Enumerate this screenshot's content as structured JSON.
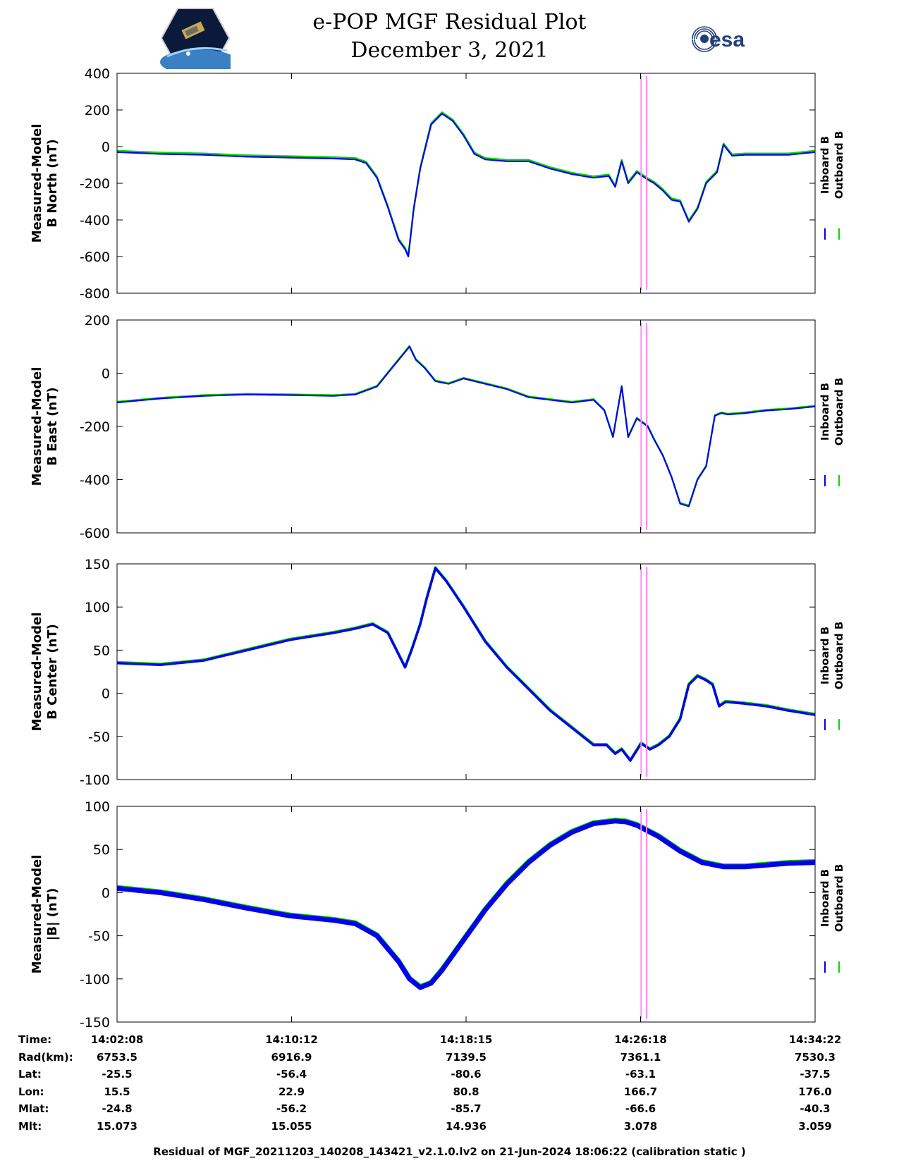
{
  "header": {
    "title_line1": "e-POP MGF Residual Plot",
    "title_line2": "December 3, 2021",
    "left_logo": "cassiope-satellite-logo",
    "right_logo_text": "esa"
  },
  "colors": {
    "inboard": "#0000ee",
    "outboard": "#00dd00",
    "marker": "#ff88ff",
    "axis": "#000000"
  },
  "chart_data": [
    {
      "type": "line",
      "ylabel": "Measured-Model\nB North (nT)",
      "ylim": [
        -800,
        400
      ],
      "yticks": [
        400,
        200,
        0,
        -200,
        -400,
        -600,
        -800
      ],
      "legend": [
        "Inboard B",
        "Outboard B"
      ],
      "legend_position": "right",
      "xlim": [
        0,
        32.23
      ],
      "series": [
        {
          "name": "Inboard B",
          "color": "#0000ee",
          "x": [
            0,
            2,
            4,
            6,
            8,
            10,
            11,
            11.5,
            12,
            12.5,
            13,
            13.3,
            13.45,
            13.7,
            14,
            14.5,
            15,
            15.5,
            16,
            16.5,
            17,
            18,
            19,
            20,
            21,
            22,
            22.7,
            23.0,
            23.3,
            23.6,
            24,
            24.5,
            24.8,
            25.2,
            25.6,
            26.0,
            26.4,
            26.8,
            27.2,
            27.7,
            28.0,
            28.4,
            29,
            30,
            31,
            32.23
          ],
          "y": [
            -30,
            -40,
            -45,
            -55,
            -60,
            -65,
            -70,
            -90,
            -170,
            -330,
            -510,
            -560,
            -600,
            -340,
            -120,
            120,
            180,
            140,
            60,
            -40,
            -70,
            -80,
            -80,
            -120,
            -150,
            -170,
            -160,
            -220,
            -80,
            -200,
            -140,
            -180,
            -200,
            -240,
            -290,
            -300,
            -410,
            -340,
            -200,
            -140,
            10,
            -50,
            -45,
            -45,
            -45,
            -30
          ]
        },
        {
          "name": "Outboard B",
          "color": "#00dd00",
          "x": [
            0,
            2,
            4,
            6,
            8,
            10,
            11,
            11.5,
            12,
            12.5,
            13,
            13.3,
            13.45,
            13.7,
            14,
            14.5,
            15,
            15.5,
            16,
            16.5,
            17,
            18,
            19,
            20,
            21,
            22,
            22.7,
            23.0,
            23.3,
            23.6,
            24,
            24.5,
            24.8,
            25.2,
            25.6,
            26.0,
            26.4,
            26.8,
            27.2,
            27.7,
            28.0,
            28.4,
            29,
            30,
            31,
            32.23
          ],
          "y": [
            -22,
            -32,
            -37,
            -47,
            -52,
            -57,
            -62,
            -82,
            -162,
            -322,
            -502,
            -552,
            -592,
            -332,
            -112,
            128,
            188,
            148,
            68,
            -32,
            -62,
            -72,
            -72,
            -112,
            -142,
            -162,
            -152,
            -212,
            -72,
            -192,
            -132,
            -172,
            -192,
            -232,
            -282,
            -292,
            -402,
            -332,
            -192,
            -132,
            18,
            -42,
            -37,
            -37,
            -37,
            -22
          ]
        }
      ]
    },
    {
      "type": "line",
      "ylabel": "Measured-Model\nB East (nT)",
      "ylim": [
        -600,
        200
      ],
      "yticks": [
        200,
        0,
        -200,
        -400,
        -600
      ],
      "legend": [
        "Inboard B",
        "Outboard B"
      ],
      "legend_position": "right",
      "xlim": [
        0,
        32.23
      ],
      "series": [
        {
          "name": "Inboard B",
          "color": "#0000ee",
          "x": [
            0,
            2,
            4,
            6,
            8,
            10,
            11,
            12,
            12.6,
            13.2,
            13.5,
            13.8,
            14.2,
            14.7,
            15.3,
            16,
            17,
            18,
            19,
            20,
            21,
            22,
            22.5,
            22.9,
            23.3,
            23.6,
            24.0,
            24.5,
            24.8,
            25.2,
            25.6,
            26.0,
            26.4,
            26.8,
            27.2,
            27.6,
            27.9,
            28.2,
            29,
            30,
            31,
            32.23
          ],
          "y": [
            -110,
            -95,
            -85,
            -80,
            -82,
            -85,
            -80,
            -50,
            10,
            70,
            100,
            50,
            20,
            -30,
            -40,
            -20,
            -40,
            -60,
            -90,
            -100,
            -110,
            -100,
            -140,
            -240,
            -50,
            -240,
            -170,
            -200,
            -250,
            -310,
            -390,
            -490,
            -500,
            -400,
            -350,
            -160,
            -150,
            -155,
            -150,
            -140,
            -135,
            -125
          ]
        },
        {
          "name": "Outboard B",
          "color": "#00dd00",
          "x": [
            0,
            2,
            4,
            6,
            8,
            10,
            11,
            12,
            12.6,
            13.2,
            13.5,
            13.8,
            14.2,
            14.7,
            15.3,
            16,
            17,
            18,
            19,
            20,
            21,
            22,
            22.5,
            22.9,
            23.3,
            23.6,
            24.0,
            24.5,
            24.8,
            25.2,
            25.6,
            26.0,
            26.4,
            26.8,
            27.2,
            27.6,
            27.9,
            28.2,
            29,
            30,
            31,
            32.23
          ],
          "y": [
            -107,
            -92,
            -82,
            -77,
            -79,
            -82,
            -77,
            -47,
            13,
            73,
            103,
            53,
            23,
            -27,
            -37,
            -17,
            -37,
            -57,
            -87,
            -97,
            -107,
            -97,
            -137,
            -237,
            -47,
            -237,
            -167,
            -197,
            -247,
            -307,
            -387,
            -487,
            -497,
            -397,
            -347,
            -157,
            -147,
            -152,
            -147,
            -137,
            -132,
            -122
          ]
        }
      ]
    },
    {
      "type": "line",
      "ylabel": "Measured-Model\nB Center (nT)",
      "ylim": [
        -100,
        150
      ],
      "yticks": [
        150,
        100,
        50,
        0,
        -50,
        -100
      ],
      "legend": [
        "Inboard B",
        "Outboard B"
      ],
      "legend_position": "right",
      "xlim": [
        0,
        32.23
      ],
      "series": [
        {
          "name": "Inboard B",
          "color": "#0000ee",
          "x": [
            0,
            2,
            4,
            6,
            8,
            10,
            11,
            11.8,
            12.5,
            13,
            13.3,
            13.6,
            14,
            14.3,
            14.7,
            15.2,
            16,
            17,
            18,
            19,
            20,
            21,
            22,
            22.6,
            23,
            23.3,
            23.7,
            24.2,
            24.6,
            25,
            25.5,
            26,
            26.4,
            26.8,
            27.2,
            27.5,
            27.8,
            28.1,
            29,
            30,
            31,
            32.23
          ],
          "y": [
            35,
            33,
            38,
            50,
            62,
            70,
            75,
            80,
            70,
            45,
            30,
            50,
            80,
            110,
            145,
            130,
            100,
            60,
            30,
            5,
            -20,
            -40,
            -60,
            -60,
            -70,
            -65,
            -78,
            -58,
            -65,
            -60,
            -50,
            -30,
            10,
            20,
            15,
            10,
            -15,
            -10,
            -12,
            -15,
            -20,
            -25
          ]
        },
        {
          "name": "Outboard B",
          "color": "#00dd00",
          "x": [
            0,
            2,
            4,
            6,
            8,
            10,
            11,
            11.8,
            12.5,
            13,
            13.3,
            13.6,
            14,
            14.3,
            14.7,
            15.2,
            16,
            17,
            18,
            19,
            20,
            21,
            22,
            22.6,
            23,
            23.3,
            23.7,
            24.2,
            24.6,
            25,
            25.5,
            26,
            26.4,
            26.8,
            27.2,
            27.5,
            27.8,
            28.1,
            29,
            30,
            31,
            32.23
          ],
          "y": [
            36,
            34,
            39,
            51,
            63,
            71,
            76,
            81,
            71,
            46,
            31,
            51,
            81,
            111,
            146,
            131,
            101,
            61,
            31,
            6,
            -19,
            -39,
            -59,
            -59,
            -69,
            -64,
            -77,
            -57,
            -64,
            -59,
            -49,
            -29,
            11,
            21,
            16,
            11,
            -14,
            -9,
            -11,
            -14,
            -19,
            -24
          ]
        }
      ]
    },
    {
      "type": "line",
      "ylabel": "Measured-Model\n|B| (nT)",
      "ylim": [
        -150,
        100
      ],
      "yticks": [
        100,
        50,
        0,
        -50,
        -100,
        -150
      ],
      "legend": [
        "Inboard B",
        "Outboard B"
      ],
      "legend_position": "right",
      "xlim": [
        0,
        32.23
      ],
      "series": [
        {
          "name": "Inboard B",
          "color": "#0000ee",
          "x": [
            0,
            2,
            4,
            6,
            8,
            10,
            11,
            12,
            13,
            13.5,
            14,
            14.5,
            15,
            16,
            17,
            18,
            19,
            20,
            21,
            22,
            23,
            23.5,
            24,
            25,
            26,
            27,
            28,
            29,
            30,
            31,
            32.23
          ],
          "y": [
            5,
            0,
            -8,
            -18,
            -27,
            -32,
            -36,
            -50,
            -80,
            -100,
            -110,
            -105,
            -90,
            -55,
            -20,
            10,
            35,
            55,
            70,
            80,
            83,
            82,
            78,
            65,
            48,
            35,
            30,
            30,
            32,
            34,
            35
          ]
        },
        {
          "name": "Outboard B",
          "color": "#00dd00",
          "x": [
            0,
            2,
            4,
            6,
            8,
            10,
            11,
            12,
            13,
            13.5,
            14,
            14.5,
            15,
            16,
            17,
            18,
            19,
            20,
            21,
            22,
            23,
            23.5,
            24,
            25,
            26,
            27,
            28,
            29,
            30,
            31,
            32.23
          ],
          "y": [
            6,
            1,
            -7,
            -17,
            -26,
            -31,
            -35,
            -49,
            -79,
            -99,
            -109,
            -104,
            -89,
            -54,
            -19,
            11,
            36,
            56,
            71,
            81,
            84,
            83,
            79,
            66,
            49,
            36,
            31,
            31,
            33,
            35,
            36
          ]
        }
      ]
    }
  ],
  "marker_line_x": [
    24.2,
    24.45
  ],
  "info_table": {
    "labels": [
      "Time:",
      "Rad(km):",
      "Lat:",
      "Lon:",
      "Mlat:",
      "Mlt:"
    ],
    "columns": [
      [
        "14:02:08",
        "6753.5",
        "-25.5",
        "15.5",
        "-24.8",
        "15.073"
      ],
      [
        "14:10:12",
        "6916.9",
        "-56.4",
        "22.9",
        "-56.2",
        "15.055"
      ],
      [
        "14:18:15",
        "7139.5",
        "-80.6",
        "80.8",
        "-85.7",
        "14.936"
      ],
      [
        "14:26:18",
        "7361.1",
        "-63.1",
        "166.7",
        "-66.6",
        "3.078"
      ],
      [
        "14:34:22",
        "7530.3",
        "-37.5",
        "176.0",
        "-40.3",
        "3.059"
      ]
    ]
  },
  "footer": "Residual of MGF_20211203_140208_143421_v2.1.0.lv2 on 21-Jun-2024 18:06:22 (calibration static )"
}
